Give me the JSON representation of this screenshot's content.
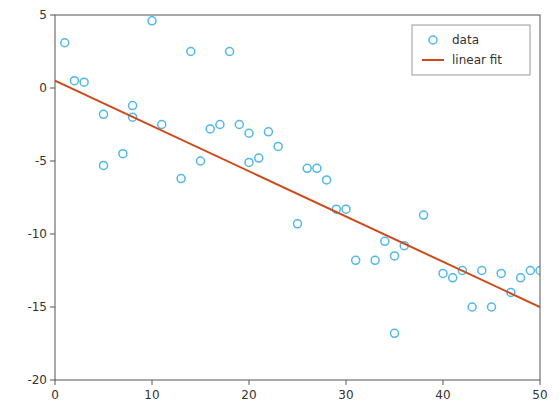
{
  "chart_data": {
    "type": "scatter",
    "series": [
      {
        "name": "data",
        "type": "scatter",
        "color": "#4eb8e8",
        "marker": "circle",
        "x": [
          1,
          2,
          3,
          5,
          5,
          7,
          8,
          8,
          10,
          11,
          13,
          14,
          15,
          16,
          17,
          18,
          19,
          20,
          20,
          21,
          22,
          23,
          25,
          26,
          27,
          28,
          29,
          30,
          31,
          33,
          34,
          35,
          35,
          36,
          38,
          40,
          41,
          42,
          43,
          44,
          45,
          46,
          47,
          48,
          49,
          50
        ],
        "values": [
          3.1,
          0.5,
          0.4,
          -5.3,
          -1.8,
          -4.5,
          -2.0,
          -1.2,
          4.6,
          -2.5,
          -6.2,
          2.5,
          -5.0,
          -2.8,
          -2.5,
          2.5,
          -2.5,
          -3.1,
          -5.1,
          -4.8,
          -3.0,
          -4.0,
          -9.3,
          -5.5,
          -5.5,
          -6.3,
          -8.3,
          -8.3,
          -11.8,
          -11.8,
          -10.5,
          -16.8,
          -11.5,
          -10.8,
          -8.7,
          -12.7,
          -13.0,
          -12.5,
          -15.0,
          -12.5,
          -15.0,
          -12.7,
          -14.0,
          -13.0,
          -12.5,
          -12.5
        ]
      },
      {
        "name": "linear fit",
        "type": "line",
        "color": "#cc4a1a",
        "line_style": "solid",
        "x": [
          0,
          50
        ],
        "values": [
          0.5,
          -15.0
        ]
      }
    ],
    "xlim": [
      0,
      50
    ],
    "ylim": [
      -20,
      5
    ],
    "xticks": [
      0,
      10,
      20,
      30,
      40,
      50
    ],
    "yticks": [
      -20,
      -15,
      -10,
      -5,
      0,
      5
    ],
    "grid": false,
    "legend": "upper right"
  }
}
